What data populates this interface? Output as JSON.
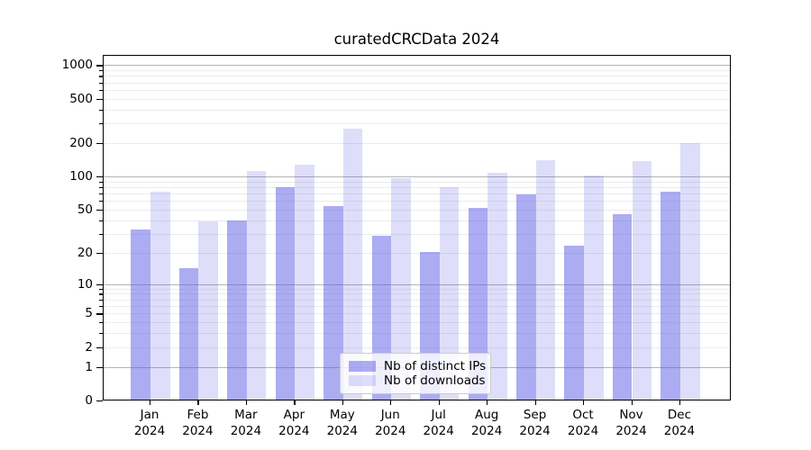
{
  "figure": {
    "title": "curatedCRCData 2024",
    "colors": {
      "bar_ips": "rgba(90,90,230,0.5)",
      "bar_downloads": "rgba(90,90,230,0.2)",
      "major_grid": "#b4b4b4",
      "minor_grid": "#ebebeb",
      "axis": "#000000",
      "legend_border": "#cccccc"
    }
  },
  "chart_data": {
    "type": "bar",
    "title": "curatedCRCData 2024",
    "categories": [
      "Jan 2024",
      "Feb 2024",
      "Mar 2024",
      "Apr 2024",
      "May 2024",
      "Jun 2024",
      "Jul 2024",
      "Aug 2024",
      "Sep 2024",
      "Oct 2024",
      "Nov 2024",
      "Dec 2024"
    ],
    "series": [
      {
        "name": "Nb of distinct IPs",
        "color": "rgba(90,90,230,0.5)",
        "values": [
          32,
          14,
          39,
          78,
          53,
          28,
          20,
          51,
          68,
          23,
          45,
          71
        ]
      },
      {
        "name": "Nb of downloads",
        "color": "rgba(90,90,230,0.2)",
        "values": [
          72,
          38,
          111,
          125,
          266,
          95,
          79,
          106,
          137,
          100,
          136,
          195
        ]
      }
    ],
    "xlabel": "",
    "ylabel": "",
    "yscale": "log1p",
    "yticks": [
      0,
      1,
      2,
      5,
      10,
      20,
      50,
      100,
      200,
      500,
      1000
    ],
    "minor_yticks": [
      3,
      4,
      6,
      7,
      8,
      9,
      30,
      40,
      60,
      70,
      80,
      90,
      300,
      400,
      600,
      700,
      800,
      900
    ],
    "major_grid_yticks": [
      1,
      10,
      100,
      1000
    ],
    "ylim": [
      0,
      1230
    ],
    "grid": true,
    "legend_position": "lower center"
  }
}
